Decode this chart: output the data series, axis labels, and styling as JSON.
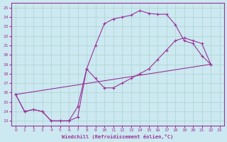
{
  "xlabel": "Windchill (Refroidissement éolien,°C)",
  "background_color": "#cce8f0",
  "grid_color": "#aad4d0",
  "line_color": "#993399",
  "xlim": [
    -0.5,
    23.5
  ],
  "ylim": [
    12.5,
    25.5
  ],
  "xticks": [
    0,
    1,
    2,
    3,
    4,
    5,
    6,
    7,
    8,
    9,
    10,
    11,
    12,
    13,
    14,
    15,
    16,
    17,
    18,
    19,
    20,
    21,
    22,
    23
  ],
  "yticks": [
    13,
    14,
    15,
    16,
    17,
    18,
    19,
    20,
    21,
    22,
    23,
    24,
    25
  ],
  "curve1_x": [
    0,
    1,
    2,
    3,
    4,
    5,
    6,
    7,
    8,
    9,
    10,
    11,
    12,
    13,
    14,
    15,
    16,
    17,
    18,
    19,
    20,
    21,
    22
  ],
  "curve1_y": [
    15.8,
    14.0,
    14.2,
    14.0,
    13.0,
    13.0,
    13.0,
    13.4,
    18.5,
    21.0,
    23.3,
    23.8,
    24.0,
    24.2,
    24.7,
    24.4,
    24.3,
    24.3,
    23.2,
    21.5,
    21.2,
    19.9,
    19.0
  ],
  "curve2_x": [
    0,
    1,
    2,
    3,
    4,
    5,
    6,
    7,
    8,
    9,
    10,
    11,
    12,
    13,
    14,
    15,
    16,
    17,
    18,
    19,
    20,
    21,
    22
  ],
  "curve2_y": [
    15.8,
    14.0,
    14.2,
    14.0,
    13.0,
    13.0,
    13.0,
    14.5,
    18.5,
    17.5,
    16.5,
    16.5,
    17.0,
    17.5,
    18.0,
    18.5,
    19.5,
    20.5,
    21.5,
    21.8,
    21.5,
    21.2,
    19.0
  ],
  "curve3_x": [
    0,
    22
  ],
  "curve3_y": [
    15.8,
    19.0
  ]
}
